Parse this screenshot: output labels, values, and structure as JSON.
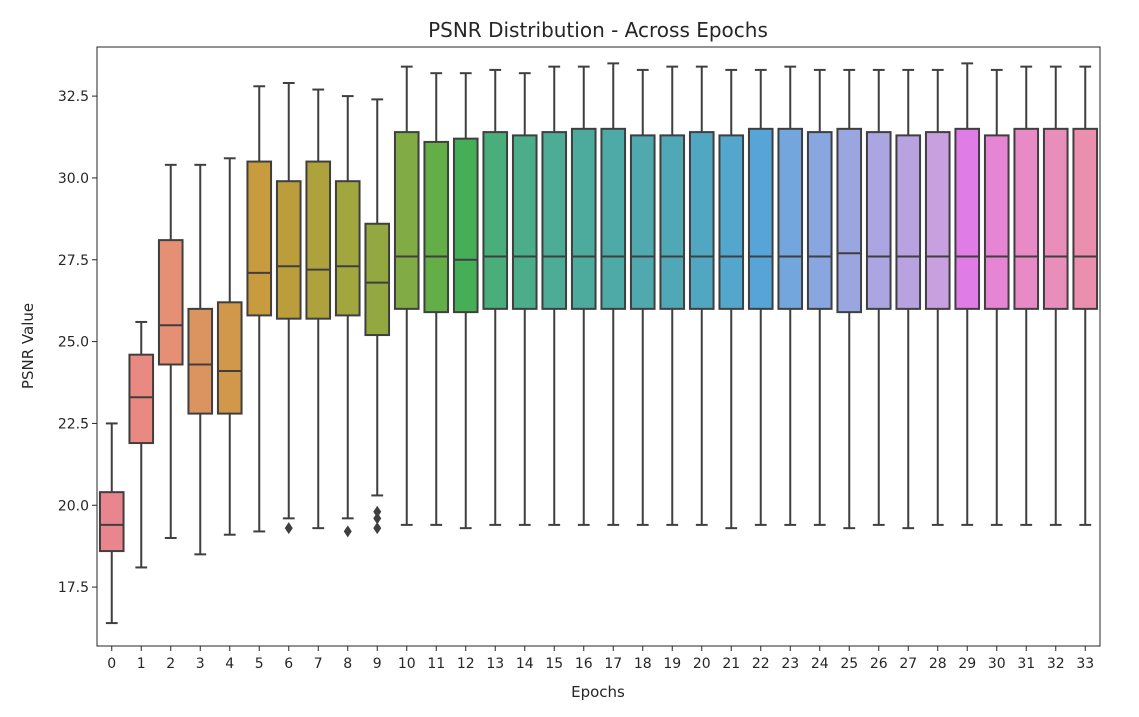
{
  "chart_data": {
    "type": "box",
    "title": "PSNR Distribution - Across Epochs",
    "xlabel": "Epochs",
    "ylabel": "PSNR Value",
    "ylim": [
      15.7,
      34.0
    ],
    "yticks": [
      17.5,
      20.0,
      22.5,
      25.0,
      27.5,
      30.0,
      32.5
    ],
    "ytick_labels": [
      "17.5",
      "20.0",
      "22.5",
      "25.0",
      "27.5",
      "30.0",
      "32.5"
    ],
    "grid": false,
    "legend": "none",
    "boxes": [
      {
        "label": "0",
        "color": "#e8858e",
        "whislo": 16.4,
        "q1": 18.6,
        "med": 19.4,
        "q3": 20.4,
        "whishi": 22.5,
        "fliers": []
      },
      {
        "label": "1",
        "color": "#e88a82",
        "whislo": 18.1,
        "q1": 21.9,
        "med": 23.3,
        "q3": 24.6,
        "whishi": 25.6,
        "fliers": []
      },
      {
        "label": "2",
        "color": "#e58f75",
        "whislo": 19.0,
        "q1": 24.3,
        "med": 25.5,
        "q3": 28.1,
        "whishi": 30.4,
        "fliers": []
      },
      {
        "label": "3",
        "color": "#db9460",
        "whislo": 18.5,
        "q1": 22.8,
        "med": 24.3,
        "q3": 26.0,
        "whishi": 30.4,
        "fliers": []
      },
      {
        "label": "4",
        "color": "#d1984b",
        "whislo": 19.1,
        "q1": 22.8,
        "med": 24.1,
        "q3": 26.2,
        "whishi": 30.6,
        "fliers": []
      },
      {
        "label": "5",
        "color": "#c79b3e",
        "whislo": 19.2,
        "q1": 25.8,
        "med": 27.1,
        "q3": 30.5,
        "whishi": 32.8,
        "fliers": []
      },
      {
        "label": "6",
        "color": "#bb9e3b",
        "whislo": 19.6,
        "q1": 25.7,
        "med": 27.3,
        "q3": 29.9,
        "whishi": 32.9,
        "fliers": [
          19.3
        ]
      },
      {
        "label": "7",
        "color": "#aea23c",
        "whislo": 19.3,
        "q1": 25.7,
        "med": 27.2,
        "q3": 30.5,
        "whishi": 32.7,
        "fliers": []
      },
      {
        "label": "8",
        "color": "#a2a63f",
        "whislo": 19.6,
        "q1": 25.8,
        "med": 27.3,
        "q3": 29.9,
        "whishi": 32.5,
        "fliers": [
          19.2
        ]
      },
      {
        "label": "9",
        "color": "#94a842",
        "whislo": 20.3,
        "q1": 25.2,
        "med": 26.8,
        "q3": 28.6,
        "whishi": 32.4,
        "fliers": [
          19.8,
          19.6,
          19.3
        ]
      },
      {
        "label": "10",
        "color": "#80ab45",
        "whislo": 19.4,
        "q1": 26.0,
        "med": 27.6,
        "q3": 31.4,
        "whishi": 33.4,
        "fliers": []
      },
      {
        "label": "11",
        "color": "#63ae47",
        "whislo": 19.4,
        "q1": 25.9,
        "med": 27.6,
        "q3": 31.1,
        "whishi": 33.2,
        "fliers": []
      },
      {
        "label": "12",
        "color": "#47ae58",
        "whislo": 19.3,
        "q1": 25.9,
        "med": 27.5,
        "q3": 31.2,
        "whishi": 33.2,
        "fliers": []
      },
      {
        "label": "13",
        "color": "#4aae7a",
        "whislo": 19.4,
        "q1": 26.0,
        "med": 27.6,
        "q3": 31.4,
        "whishi": 33.3,
        "fliers": []
      },
      {
        "label": "14",
        "color": "#4bad8a",
        "whislo": 19.4,
        "q1": 26.0,
        "med": 27.6,
        "q3": 31.3,
        "whishi": 33.2,
        "fliers": []
      },
      {
        "label": "15",
        "color": "#4cac95",
        "whislo": 19.4,
        "q1": 26.0,
        "med": 27.6,
        "q3": 31.4,
        "whishi": 33.4,
        "fliers": []
      },
      {
        "label": "16",
        "color": "#4dab9e",
        "whislo": 19.4,
        "q1": 26.0,
        "med": 27.6,
        "q3": 31.5,
        "whishi": 33.4,
        "fliers": []
      },
      {
        "label": "17",
        "color": "#4eaaa6",
        "whislo": 19.4,
        "q1": 26.0,
        "med": 27.6,
        "q3": 31.5,
        "whishi": 33.5,
        "fliers": []
      },
      {
        "label": "18",
        "color": "#4fa9ae",
        "whislo": 19.4,
        "q1": 26.0,
        "med": 27.6,
        "q3": 31.3,
        "whishi": 33.3,
        "fliers": []
      },
      {
        "label": "19",
        "color": "#50a8b7",
        "whislo": 19.4,
        "q1": 26.0,
        "med": 27.6,
        "q3": 31.3,
        "whishi": 33.4,
        "fliers": []
      },
      {
        "label": "20",
        "color": "#51a7c1",
        "whislo": 19.4,
        "q1": 26.0,
        "med": 27.6,
        "q3": 31.4,
        "whishi": 33.4,
        "fliers": []
      },
      {
        "label": "21",
        "color": "#53a6cc",
        "whislo": 19.3,
        "q1": 26.0,
        "med": 27.6,
        "q3": 31.3,
        "whishi": 33.3,
        "fliers": []
      },
      {
        "label": "22",
        "color": "#56a4d8",
        "whislo": 19.4,
        "q1": 26.0,
        "med": 27.6,
        "q3": 31.5,
        "whishi": 33.3,
        "fliers": []
      },
      {
        "label": "23",
        "color": "#72a6dc",
        "whislo": 19.4,
        "q1": 26.0,
        "med": 27.6,
        "q3": 31.5,
        "whishi": 33.4,
        "fliers": []
      },
      {
        "label": "24",
        "color": "#88a6df",
        "whislo": 19.4,
        "q1": 26.0,
        "med": 27.6,
        "q3": 31.4,
        "whishi": 33.3,
        "fliers": []
      },
      {
        "label": "25",
        "color": "#9aa6e0",
        "whislo": 19.3,
        "q1": 25.9,
        "med": 27.7,
        "q3": 31.5,
        "whishi": 33.3,
        "fliers": []
      },
      {
        "label": "26",
        "color": "#aba5e1",
        "whislo": 19.4,
        "q1": 26.0,
        "med": 27.6,
        "q3": 31.4,
        "whishi": 33.3,
        "fliers": []
      },
      {
        "label": "27",
        "color": "#b9a2e0",
        "whislo": 19.3,
        "q1": 26.0,
        "med": 27.6,
        "q3": 31.3,
        "whishi": 33.3,
        "fliers": []
      },
      {
        "label": "28",
        "color": "#c89fdf",
        "whislo": 19.4,
        "q1": 26.0,
        "med": 27.6,
        "q3": 31.4,
        "whishi": 33.3,
        "fliers": []
      },
      {
        "label": "29",
        "color": "#e07ce6",
        "whislo": 19.4,
        "q1": 26.0,
        "med": 27.6,
        "q3": 31.5,
        "whishi": 33.5,
        "fliers": []
      },
      {
        "label": "30",
        "color": "#e685d3",
        "whislo": 19.4,
        "q1": 26.0,
        "med": 27.6,
        "q3": 31.3,
        "whishi": 33.3,
        "fliers": []
      },
      {
        "label": "31",
        "color": "#e88ac6",
        "whislo": 19.4,
        "q1": 26.0,
        "med": 27.6,
        "q3": 31.5,
        "whishi": 33.4,
        "fliers": []
      },
      {
        "label": "32",
        "color": "#e98dba",
        "whislo": 19.4,
        "q1": 26.0,
        "med": 27.6,
        "q3": 31.5,
        "whishi": 33.4,
        "fliers": []
      },
      {
        "label": "33",
        "color": "#ea8fad",
        "whislo": 19.4,
        "q1": 26.0,
        "med": 27.6,
        "q3": 31.5,
        "whishi": 33.4,
        "fliers": []
      }
    ]
  }
}
